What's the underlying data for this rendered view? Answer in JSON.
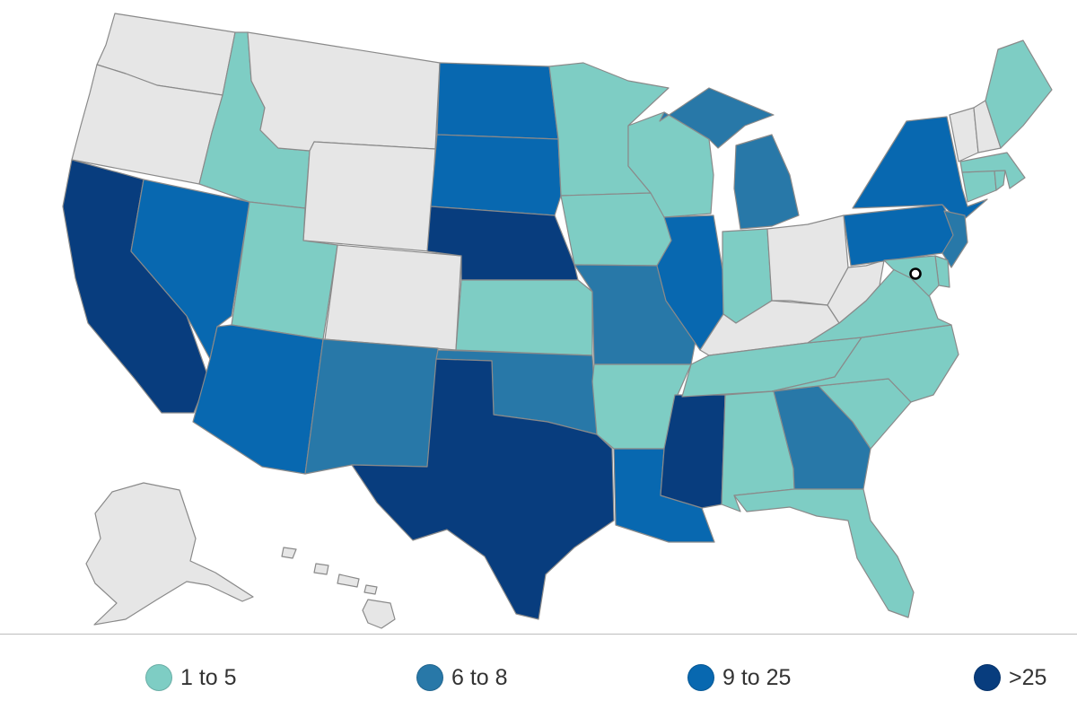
{
  "colors": {
    "no_data": "#e6e6e6",
    "border": "#8a8a8a",
    "c1": "#7ecdc4",
    "c2": "#2878a8",
    "c3": "#0868b0",
    "c4": "#083d7e"
  },
  "legend": [
    {
      "label": "1 to 5",
      "color_key": "c1"
    },
    {
      "label": "6 to 8",
      "color_key": "c2"
    },
    {
      "label": "9 to 25",
      "color_key": "c3"
    },
    {
      "label": ">25",
      "color_key": "c4"
    }
  ],
  "states": {
    "WA": "none",
    "OR": "none",
    "CA": "c4",
    "NV": "c3",
    "ID": "c1",
    "MT": "none",
    "WY": "none",
    "UT": "c1",
    "AZ": "c3",
    "CO": "none",
    "NM": "c2",
    "ND": "c3",
    "SD": "c3",
    "NE": "c4",
    "KS": "c1",
    "OK": "c2",
    "TX": "c4",
    "MN": "c1",
    "IA": "c1",
    "MO": "c2",
    "AR": "c1",
    "LA": "c3",
    "WI": "c1",
    "IL": "c3",
    "MS": "c4",
    "MI": "c2",
    "IN": "c1",
    "OH": "none",
    "KY": "none",
    "TN": "c1",
    "AL": "c1",
    "GA": "c2",
    "FL": "c1",
    "SC": "c1",
    "NC": "c1",
    "VA": "c1",
    "WV": "none",
    "PA": "c3",
    "NY": "c3",
    "NJ": "c2",
    "DE": "c1",
    "MD": "c1",
    "CT": "c1",
    "RI": "c1",
    "MA": "c1",
    "VT": "none",
    "NH": "none",
    "ME": "c1",
    "AK": "none",
    "HI": "none"
  }
}
